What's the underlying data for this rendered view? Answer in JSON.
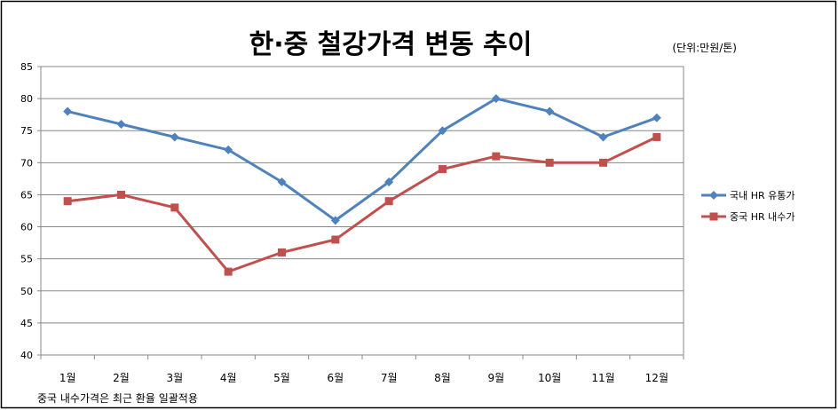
{
  "chart_data": {
    "type": "line",
    "title": "한·중 철강가격 변동 추이",
    "unit": "(단위:만원/톤)",
    "footnote": "중국 내수가격은 최근 환율 일괄적용",
    "categories": [
      "1월",
      "2월",
      "3월",
      "4월",
      "5월",
      "6월",
      "7월",
      "8월",
      "9월",
      "10월",
      "11월",
      "12월"
    ],
    "ylim": [
      40,
      85
    ],
    "yticks": [
      40,
      45,
      50,
      55,
      60,
      65,
      70,
      75,
      80,
      85
    ],
    "grid": "horizontal",
    "legend_position": "right",
    "series": [
      {
        "name": "국내 HR 유통가",
        "color": "#4f81bd",
        "marker": "diamond",
        "values": [
          78,
          76,
          74,
          72,
          67,
          61,
          67,
          75,
          80,
          78,
          74,
          77
        ]
      },
      {
        "name": "중국 HR 내수가",
        "color": "#c0504d",
        "marker": "square",
        "values": [
          64,
          65,
          63,
          53,
          56,
          58,
          64,
          69,
          71,
          70,
          70,
          74
        ]
      }
    ]
  }
}
